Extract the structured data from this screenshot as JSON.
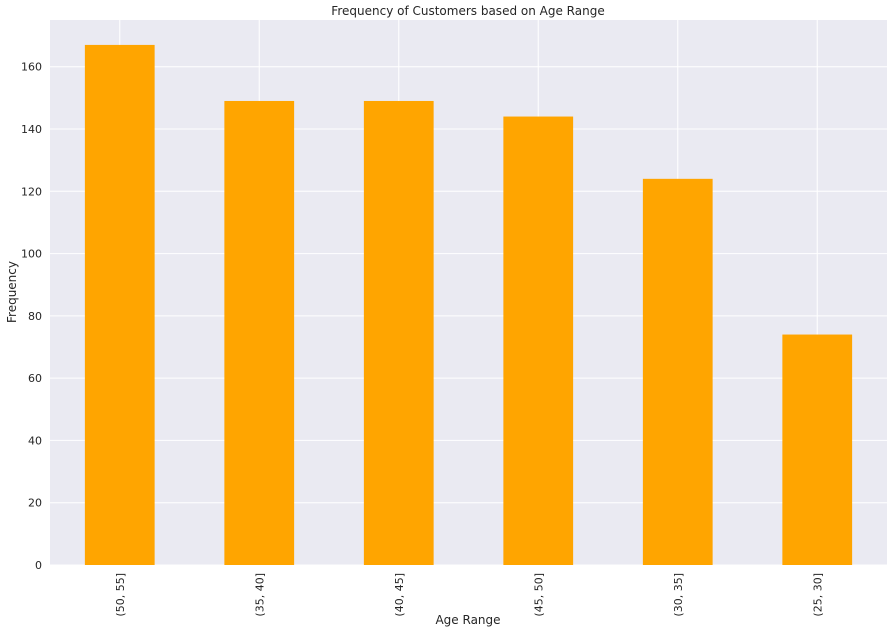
{
  "chart_data": {
    "type": "bar",
    "title": "Frequency of Customers based on Age Range",
    "xlabel": "Age Range",
    "ylabel": "Frequency",
    "categories": [
      "(50, 55]",
      "(35, 40]",
      "(40, 45]",
      "(45, 50]",
      "(30, 35]",
      "(25, 30]"
    ],
    "values": [
      167,
      149,
      149,
      144,
      124,
      74
    ],
    "ylim": [
      0,
      175
    ],
    "yticks": [
      0,
      20,
      40,
      60,
      80,
      100,
      120,
      140,
      160
    ],
    "grid": true,
    "bar_color": "#FFA500",
    "plot_background": "#EAEAF2",
    "grid_color": "#FFFFFF"
  }
}
